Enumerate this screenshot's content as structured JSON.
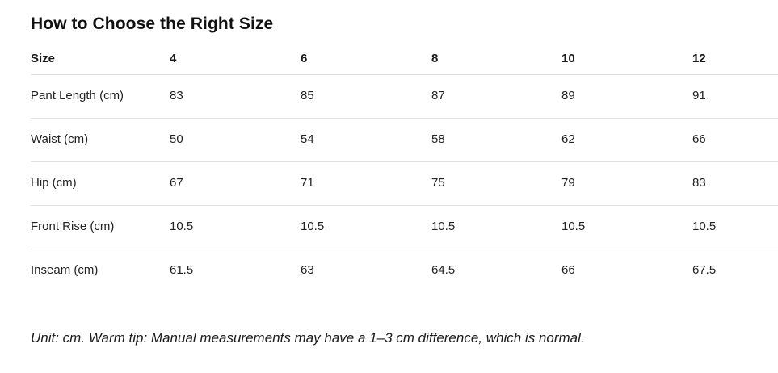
{
  "title": "How to Choose the Right Size",
  "size_label": "Size",
  "chart_data": {
    "type": "table",
    "title": "How to Choose the Right Size",
    "categories": [
      "4",
      "6",
      "8",
      "10",
      "12"
    ],
    "series": [
      {
        "name": "Pant Length (cm)",
        "values": [
          83,
          85,
          87,
          89,
          91
        ]
      },
      {
        "name": "Waist (cm)",
        "values": [
          50,
          54,
          58,
          62,
          66
        ]
      },
      {
        "name": "Hip (cm)",
        "values": [
          67,
          71,
          75,
          79,
          83
        ]
      },
      {
        "name": "Front Rise (cm)",
        "values": [
          10.5,
          10.5,
          10.5,
          10.5,
          10.5
        ]
      },
      {
        "name": "Inseam (cm)",
        "values": [
          61.5,
          63,
          64.5,
          66,
          67.5
        ]
      }
    ],
    "note": "Unit: cm. Warm tip: Manual measurements may have a 1–3 cm difference, which is normal."
  },
  "footnote": "Unit: cm. Warm tip: Manual measurements may have a 1–3 cm difference, which is normal.",
  "colors": {
    "text": "#1b1b1b",
    "divider": "#e0e0e0",
    "background": "#ffffff"
  }
}
